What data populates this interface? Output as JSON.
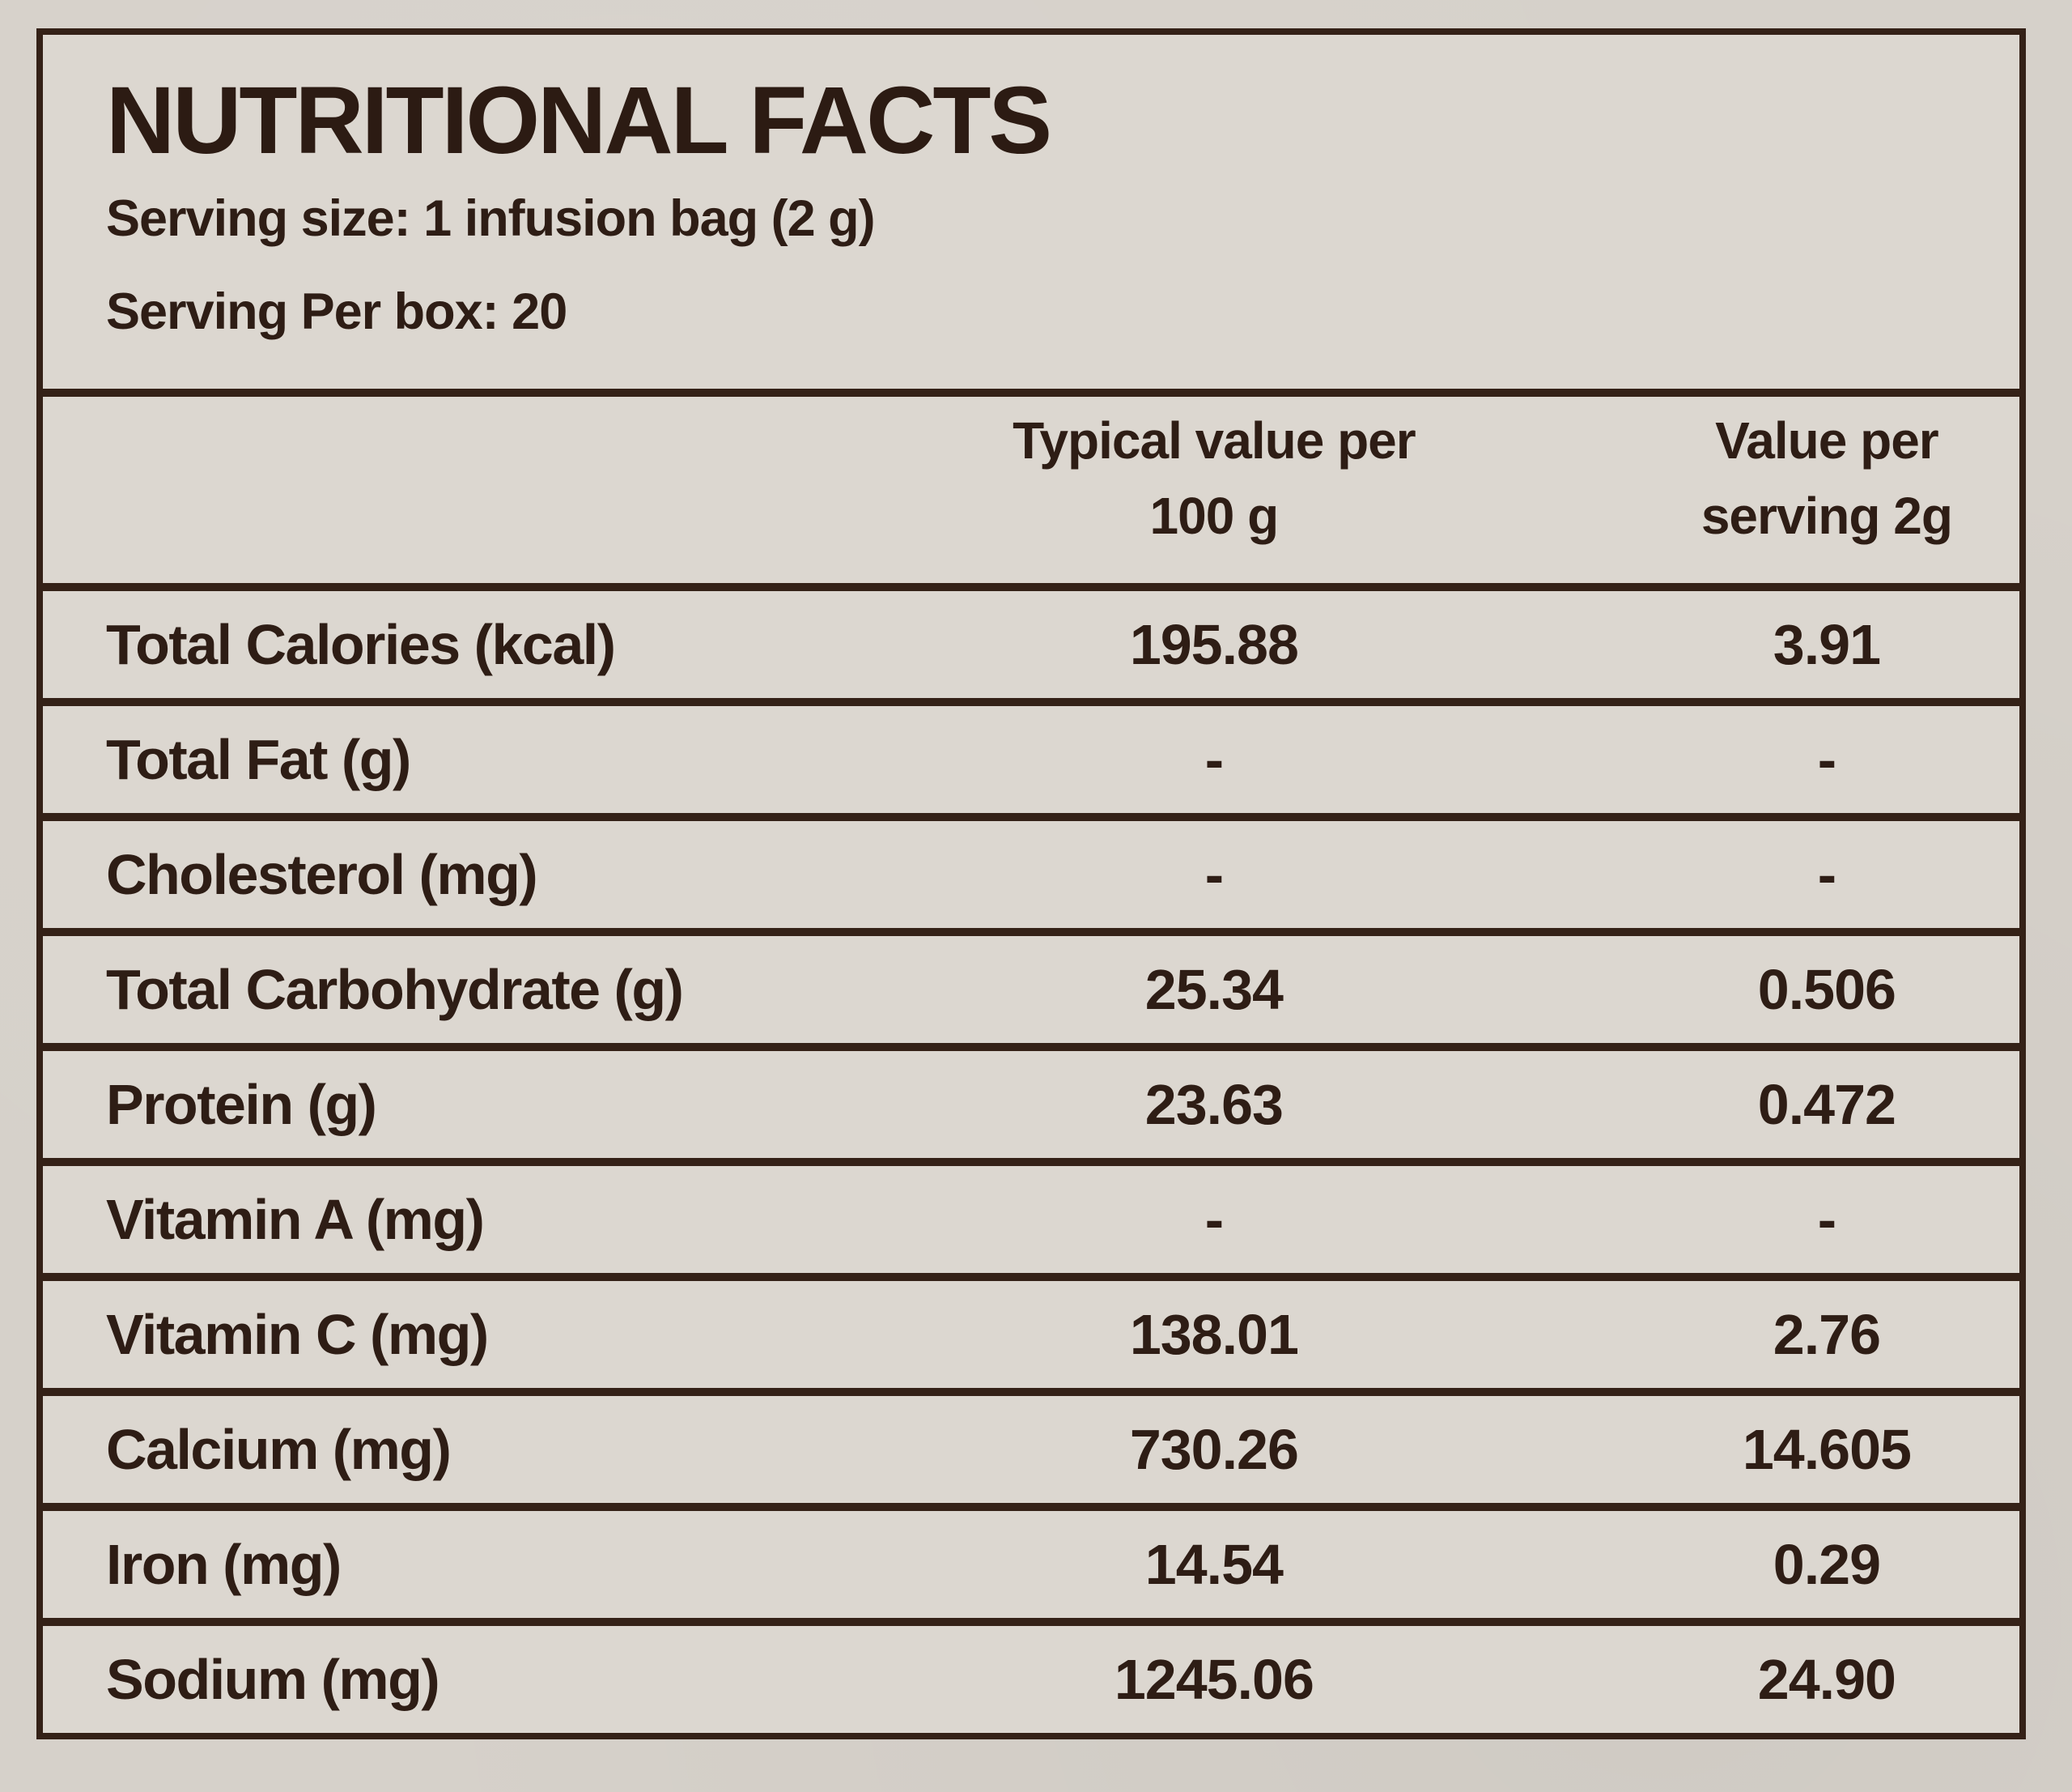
{
  "label": {
    "title": "NUTRITIONAL FACTS",
    "serving_size": "Serving size: 1 infusion bag (2 g)",
    "serving_per_box": "Serving Per box: 20"
  },
  "table": {
    "header": {
      "per100": {
        "line1": "Typical value per",
        "line2": "100 g"
      },
      "perserving": {
        "line1": "Value per",
        "line2": "serving 2g"
      }
    },
    "rows": [
      {
        "label": "Total Calories (kcal)",
        "per_100g": "195.88",
        "per_serving": "3.91"
      },
      {
        "label": "Total Fat (g)",
        "per_100g": "-",
        "per_serving": "-"
      },
      {
        "label": "Cholesterol (mg)",
        "per_100g": "-",
        "per_serving": "-"
      },
      {
        "label": "Total Carbohydrate (g)",
        "per_100g": "25.34",
        "per_serving": "0.506"
      },
      {
        "label": "Protein (g)",
        "per_100g": "23.63",
        "per_serving": "0.472"
      },
      {
        "label": "Vitamin A (mg)",
        "per_100g": "-",
        "per_serving": "-"
      },
      {
        "label": "Vitamin C (mg)",
        "per_100g": "138.01",
        "per_serving": "2.76"
      },
      {
        "label": "Calcium (mg)",
        "per_100g": "730.26",
        "per_serving": "14.605"
      },
      {
        "label": "Iron (mg)",
        "per_100g": "14.54",
        "per_serving": "0.29"
      },
      {
        "label": "Sodium (mg)",
        "per_100g": "1245.06",
        "per_serving": "24.90"
      }
    ]
  },
  "colors": {
    "ink": "#2e1d15",
    "rule": "#342117",
    "paper_outer": "#d6d1ca",
    "paper_inner": "#dcd7d0"
  }
}
